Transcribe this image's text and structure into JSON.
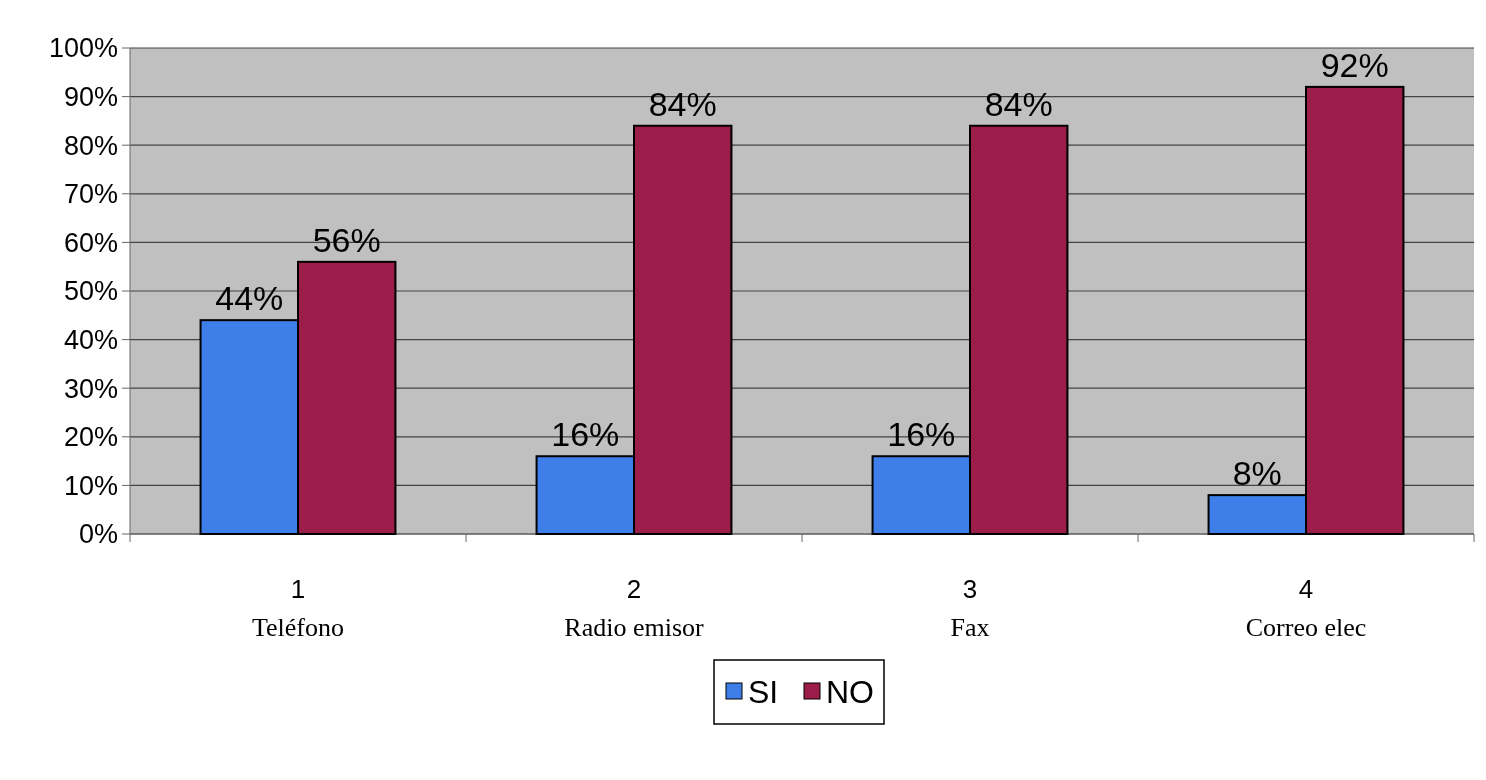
{
  "chart_data": {
    "type": "bar",
    "categories": [
      "1",
      "2",
      "3",
      "4"
    ],
    "annotations": [
      "Teléfono",
      "Radio emisor",
      "Fax",
      "Correo elec"
    ],
    "series": [
      {
        "name": "SI",
        "color": "#3d7ee8",
        "values": [
          44,
          16,
          16,
          8
        ],
        "value_labels": [
          "44%",
          "16%",
          "16%",
          "8%"
        ]
      },
      {
        "name": "NO",
        "color": "#9c1c4a",
        "values": [
          56,
          84,
          84,
          92
        ],
        "value_labels": [
          "56%",
          "84%",
          "84%",
          "92%"
        ]
      }
    ],
    "ylim": [
      0,
      100
    ],
    "yticks": [
      {
        "value": 0,
        "label": "0%"
      },
      {
        "value": 10,
        "label": "10%"
      },
      {
        "value": 20,
        "label": "20%"
      },
      {
        "value": 30,
        "label": "30%"
      },
      {
        "value": 40,
        "label": "40%"
      },
      {
        "value": 50,
        "label": "50%"
      },
      {
        "value": 60,
        "label": "60%"
      },
      {
        "value": 70,
        "label": "70%"
      },
      {
        "value": 80,
        "label": "80%"
      },
      {
        "value": 90,
        "label": "90%"
      },
      {
        "value": 100,
        "label": "100%"
      }
    ],
    "grid": "y",
    "legend": "bottom"
  }
}
